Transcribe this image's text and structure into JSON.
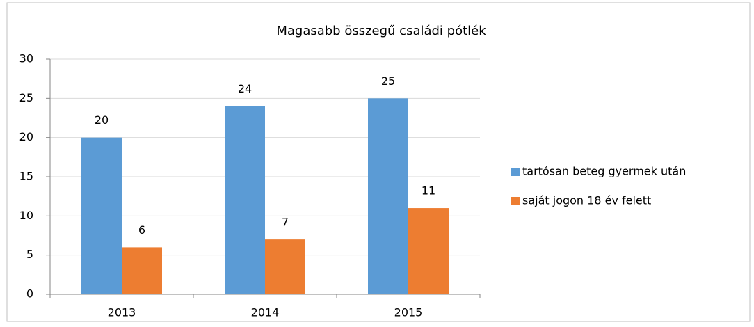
{
  "chart_data": {
    "type": "bar",
    "title": "Magasabb összegű családi pótlék",
    "categories": [
      "2013",
      "2014",
      "2015"
    ],
    "series": [
      {
        "name": "tartósan beteg gyermek után",
        "color": "#5b9bd5",
        "values": [
          20,
          24,
          25
        ]
      },
      {
        "name": "saját jogon 18 év felett",
        "color": "#ed7d31",
        "values": [
          6,
          7,
          11
        ]
      }
    ],
    "ylim": [
      0,
      30
    ],
    "yticks": [
      0,
      5,
      10,
      15,
      20,
      25,
      30
    ],
    "grid": true,
    "legend": "right"
  }
}
